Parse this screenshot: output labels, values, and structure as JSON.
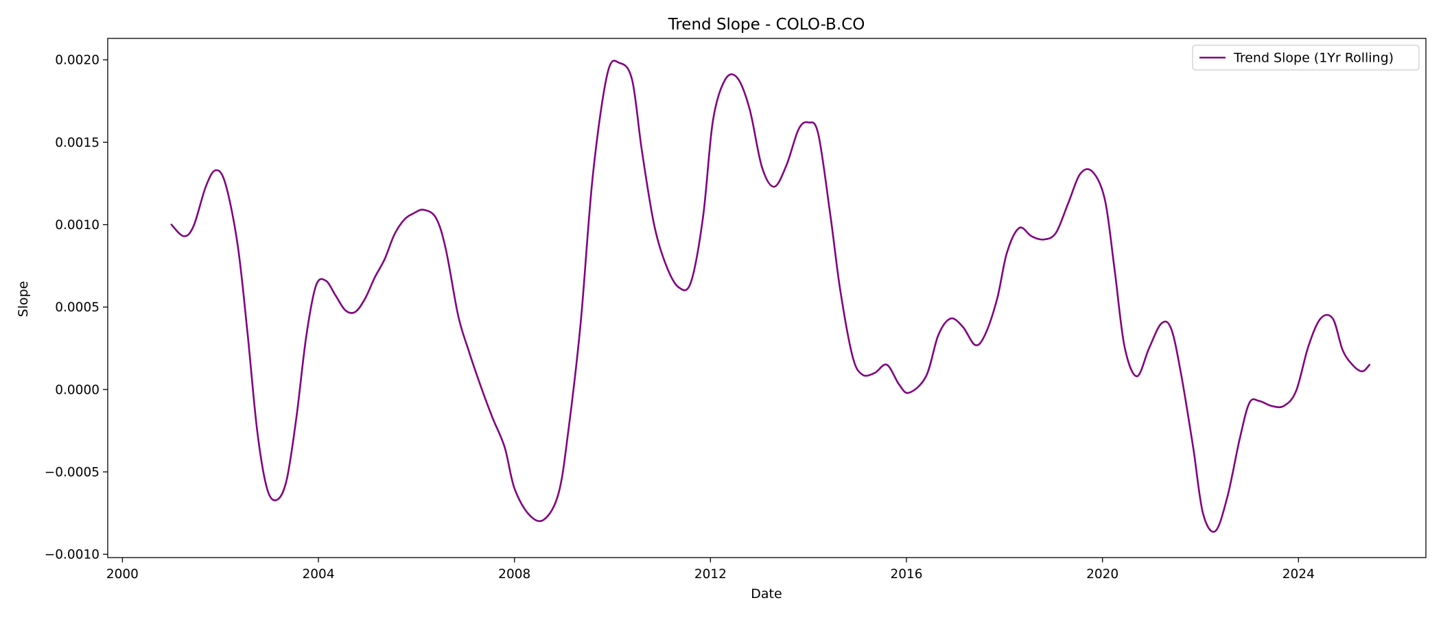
{
  "chart_data": {
    "type": "line",
    "title": "Trend Slope - COLO-B.CO",
    "xlabel": "Date",
    "ylabel": "Slope",
    "xlim": [
      1999.7,
      2026.6
    ],
    "ylim": [
      -0.00102,
      0.00213
    ],
    "x_ticks": [
      2000,
      2004,
      2008,
      2012,
      2016,
      2020,
      2024
    ],
    "x_tick_labels": [
      "2000",
      "2004",
      "2008",
      "2012",
      "2016",
      "2020",
      "2024"
    ],
    "y_ticks": [
      -0.001,
      -0.0005,
      0.0,
      0.0005,
      0.001,
      0.0015,
      0.002
    ],
    "y_tick_labels": [
      "−0.0010",
      "−0.0005",
      "0.0000",
      "0.0005",
      "0.0010",
      "0.0015",
      "0.0020"
    ],
    "grid": false,
    "legend": {
      "position": "top-right",
      "entries": [
        "Trend Slope (1Yr Rolling)"
      ]
    },
    "series": [
      {
        "name": "Trend Slope (1Yr Rolling)",
        "color": "#800080",
        "x": [
          2001.0,
          2001.25,
          2001.45,
          2001.7,
          2001.9,
          2002.1,
          2002.35,
          2002.55,
          2002.75,
          2002.95,
          2003.15,
          2003.35,
          2003.55,
          2003.75,
          2003.95,
          2004.15,
          2004.35,
          2004.55,
          2004.75,
          2004.95,
          2005.15,
          2005.35,
          2005.55,
          2005.75,
          2005.95,
          2006.15,
          2006.4,
          2006.6,
          2006.85,
          2007.05,
          2007.3,
          2007.55,
          2007.8,
          2008.0,
          2008.3,
          2008.6,
          2008.9,
          2009.1,
          2009.35,
          2009.6,
          2009.9,
          2010.15,
          2010.4,
          2010.6,
          2010.85,
          2011.1,
          2011.35,
          2011.6,
          2011.85,
          2012.05,
          2012.3,
          2012.55,
          2012.8,
          2013.05,
          2013.3,
          2013.55,
          2013.8,
          2014.0,
          2014.2,
          2014.45,
          2014.65,
          2014.9,
          2015.1,
          2015.35,
          2015.6,
          2015.85,
          2016.05,
          2016.4,
          2016.65,
          2016.9,
          2017.15,
          2017.4,
          2017.6,
          2017.85,
          2018.05,
          2018.3,
          2018.55,
          2018.8,
          2019.05,
          2019.3,
          2019.55,
          2019.8,
          2020.05,
          2020.25,
          2020.45,
          2020.7,
          2020.95,
          2021.2,
          2021.4,
          2021.6,
          2021.85,
          2022.05,
          2022.3,
          2022.55,
          2022.8,
          2023.0,
          2023.2,
          2023.45,
          2023.7,
          2023.95,
          2024.2,
          2024.45,
          2024.7,
          2024.9,
          2025.1,
          2025.3,
          2025.45
        ],
        "y": [
          0.001,
          0.00093,
          0.00099,
          0.00123,
          0.00133,
          0.00125,
          0.00088,
          0.00035,
          -0.00025,
          -0.0006,
          -0.00067,
          -0.00055,
          -0.00017,
          0.00032,
          0.00063,
          0.00066,
          0.00057,
          0.00048,
          0.00047,
          0.00055,
          0.00068,
          0.00079,
          0.00094,
          0.00103,
          0.00107,
          0.00109,
          0.00104,
          0.00085,
          0.00045,
          0.00025,
          3e-05,
          -0.00017,
          -0.00035,
          -0.0006,
          -0.00076,
          -0.00079,
          -0.00063,
          -0.00025,
          0.0004,
          0.0013,
          0.00192,
          0.00198,
          0.00188,
          0.00145,
          0.001,
          0.00075,
          0.00062,
          0.00065,
          0.00105,
          0.00163,
          0.00188,
          0.00189,
          0.0017,
          0.00135,
          0.00123,
          0.00136,
          0.00158,
          0.00162,
          0.00155,
          0.00105,
          0.0006,
          0.0002,
          9e-05,
          0.0001,
          0.00015,
          3e-05,
          -2e-05,
          8e-05,
          0.00033,
          0.00043,
          0.00038,
          0.00027,
          0.00033,
          0.00055,
          0.00083,
          0.00098,
          0.00093,
          0.00091,
          0.00095,
          0.00113,
          0.00131,
          0.00132,
          0.00115,
          0.00072,
          0.00026,
          8e-05,
          0.00025,
          0.0004,
          0.00037,
          0.0001,
          -0.00035,
          -0.00075,
          -0.00086,
          -0.00065,
          -0.0003,
          -8e-05,
          -7e-05,
          -0.0001,
          -0.0001,
          -1e-05,
          0.00026,
          0.00043,
          0.00043,
          0.00024,
          0.00015,
          0.00011,
          0.00015
        ]
      }
    ]
  }
}
